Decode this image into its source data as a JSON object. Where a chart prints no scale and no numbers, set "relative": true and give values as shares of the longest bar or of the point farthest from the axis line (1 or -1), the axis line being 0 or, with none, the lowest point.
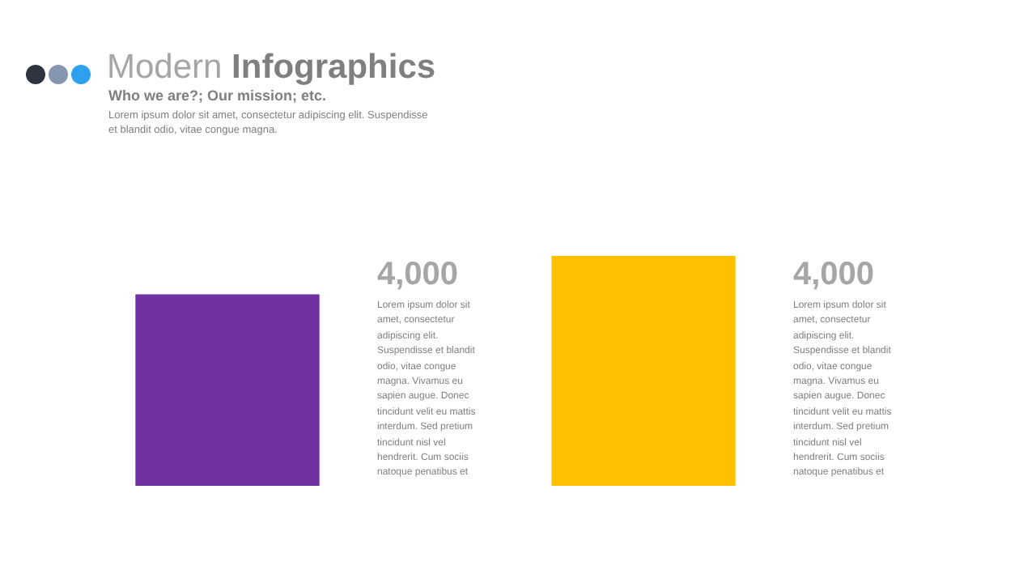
{
  "chart_data": {
    "type": "bar",
    "title": "Modern Infographics",
    "subtitle": "Who we are?; Our mission; etc.",
    "annotations": [
      "Lorem ipsum dolor sit amet, consectetur adipiscing elit. Suspendisse et blandit odio, vitae congue magna.",
      "4,000",
      "Lorem ipsum dolor sit amet, consectetur adipiscing elit. Suspendisse et blandit odio, vitae congue magna. Vivamus eu sapien augue. Donec tincidunt velit eu mattis interdum. Sed pretium tincidunt nisl vel hendrerit. Cum sociis natoque penatibus et",
      "4,000",
      "Lorem ipsum dolor sit amet, consectetur adipiscing elit. Suspendisse et blandit odio, vitae congue magna. Vivamus eu sapien augue. Donec tincidunt velit eu mattis interdum. Sed pretium tincidunt nisl vel hendrerit. Cum sociis natoque penatibus et"
    ],
    "categories": [
      null,
      null
    ],
    "values": [
      0.83,
      1
    ],
    "colors": [
      "#7030a0",
      "#ffc000"
    ],
    "relative": true,
    "legend": false
  }
}
